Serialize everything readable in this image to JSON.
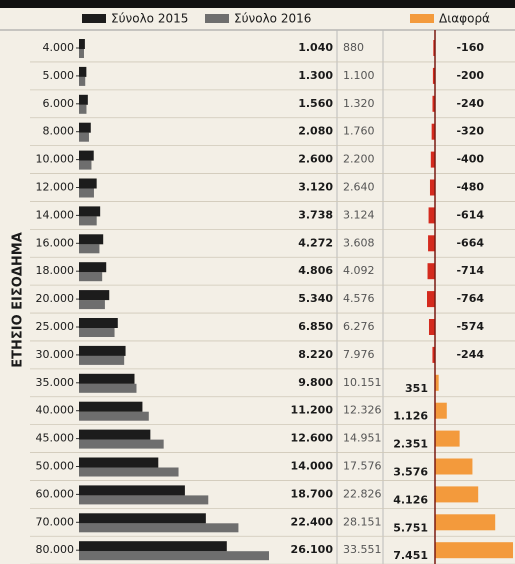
{
  "chart_data": {
    "type": "bar",
    "y_label": "ΕΤΗΣΙΟ ΕΙΣΟΔΗΜΑ",
    "categories": [
      "4.000",
      "5.000",
      "6.000",
      "8.000",
      "10.000",
      "12.000",
      "14.000",
      "16.000",
      "18.000",
      "20.000",
      "25.000",
      "30.000",
      "35.000",
      "40.000",
      "45.000",
      "50.000",
      "60.000",
      "70.000",
      "80.000"
    ],
    "series": [
      {
        "name": "Σύνολο 2015",
        "color": "#1c1c1c",
        "values": [
          1040,
          1300,
          1560,
          2080,
          2600,
          3120,
          3738,
          4272,
          4806,
          5340,
          6850,
          8220,
          9800,
          11200,
          12600,
          14000,
          18700,
          22400,
          26100
        ],
        "value_labels": [
          "1.040",
          "1.300",
          "1.560",
          "2.080",
          "2.600",
          "3.120",
          "3.738",
          "4.272",
          "4.806",
          "5.340",
          "6.850",
          "8.220",
          "9.800",
          "11.200",
          "12.600",
          "14.000",
          "18.700",
          "22.400",
          "26.100"
        ]
      },
      {
        "name": "Σύνολο 2016",
        "color": "#6e6e6e",
        "values": [
          880,
          1100,
          1320,
          1760,
          2200,
          2640,
          3124,
          3608,
          4092,
          4576,
          6276,
          7976,
          10151,
          12326,
          14951,
          17576,
          22826,
          28151,
          33551
        ],
        "value_labels": [
          "880",
          "1.100",
          "1.320",
          "1.760",
          "2.200",
          "2.640",
          "3.124",
          "3.608",
          "4.092",
          "4.576",
          "6.276",
          "7.976",
          "10.151",
          "12.326",
          "14.951",
          "17.576",
          "22.826",
          "28.151",
          "33.551"
        ]
      },
      {
        "name": "Διαφορά",
        "color": "#f39a3c",
        "negative_color": "#d42a1e",
        "values": [
          -160,
          -200,
          -240,
          -320,
          -400,
          -480,
          -614,
          -664,
          -714,
          -764,
          -574,
          -244,
          351,
          1126,
          2351,
          3576,
          4126,
          5751,
          7451
        ],
        "value_labels": [
          "-160",
          "-200",
          "-240",
          "-320",
          "-400",
          "-480",
          "-614",
          "-664",
          "-714",
          "-764",
          "-574",
          "-244",
          "351",
          "1.126",
          "2.351",
          "3.576",
          "4.126",
          "5.751",
          "7.451"
        ]
      }
    ]
  }
}
